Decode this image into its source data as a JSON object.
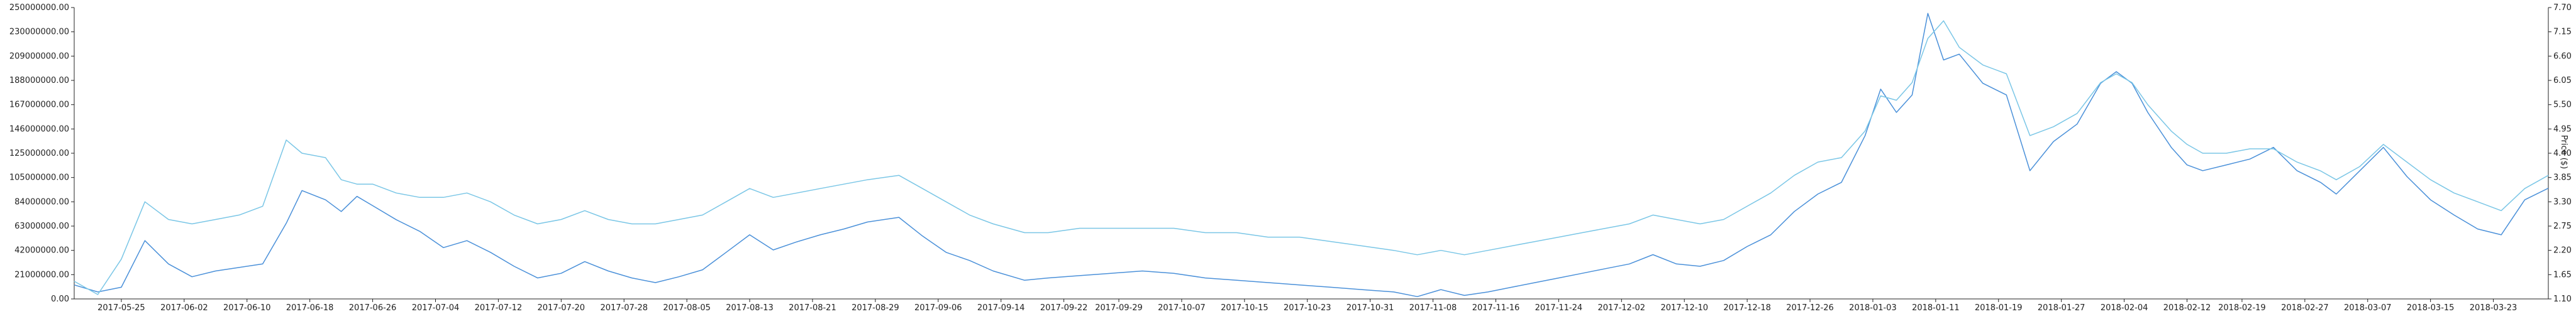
{
  "chart_data": {
    "type": "line",
    "title": "",
    "xlabel": "",
    "ylabel_left": "",
    "ylabel_right": "Price ($)",
    "y_left_ticks": [
      "0.00",
      "21000000.00",
      "42000000.00",
      "63000000.00",
      "84000000.00",
      "105000000.00",
      "125000000.00",
      "146000000.00",
      "167000000.00",
      "188000000.00",
      "209000000.00",
      "230000000.00",
      "250000000.00"
    ],
    "y_left_lim": [
      0,
      250000000
    ],
    "y_right_ticks": [
      "1.10",
      "1.65",
      "2.20",
      "2.75",
      "3.30",
      "3.85",
      "4.40",
      "4.95",
      "5.50",
      "6.05",
      "6.60",
      "7.15",
      "7.70"
    ],
    "y_right_lim": [
      1.1,
      7.7
    ],
    "x_start": "2017-05-19",
    "x_end": "2018-03-30",
    "x_tick_labels": [
      "2017-05-25",
      "2017-06-02",
      "2017-06-10",
      "2017-06-18",
      "2017-06-26",
      "2017-07-04",
      "2017-07-12",
      "2017-07-20",
      "2017-07-28",
      "2017-08-05",
      "2017-08-13",
      "2017-08-21",
      "2017-08-29",
      "2017-09-06",
      "2017-09-14",
      "2017-09-22",
      "2017-09-29",
      "2017-10-07",
      "2017-10-15",
      "2017-10-23",
      "2017-10-31",
      "2017-11-08",
      "2017-11-16",
      "2017-11-24",
      "2017-12-02",
      "2017-12-10",
      "2017-12-18",
      "2017-12-26",
      "2018-01-03",
      "2018-01-11",
      "2018-01-19",
      "2018-01-27",
      "2018-02-04",
      "2018-02-12",
      "2018-02-19",
      "2018-02-27",
      "2018-03-07",
      "2018-03-15",
      "2018-03-23"
    ],
    "series": [
      {
        "axis": "left",
        "color": "#4a90d9",
        "points": [
          [
            "2017-05-19",
            12000000
          ],
          [
            "2017-05-22",
            6000000
          ],
          [
            "2017-05-25",
            10000000
          ],
          [
            "2017-05-28",
            50000000
          ],
          [
            "2017-05-31",
            30000000
          ],
          [
            "2017-06-03",
            19000000
          ],
          [
            "2017-06-06",
            24000000
          ],
          [
            "2017-06-09",
            27000000
          ],
          [
            "2017-06-12",
            30000000
          ],
          [
            "2017-06-15",
            65000000
          ],
          [
            "2017-06-17",
            93000000
          ],
          [
            "2017-06-20",
            85000000
          ],
          [
            "2017-06-22",
            75000000
          ],
          [
            "2017-06-24",
            88000000
          ],
          [
            "2017-06-26",
            80000000
          ],
          [
            "2017-06-29",
            68000000
          ],
          [
            "2017-07-02",
            58000000
          ],
          [
            "2017-07-05",
            44000000
          ],
          [
            "2017-07-08",
            50000000
          ],
          [
            "2017-07-11",
            40000000
          ],
          [
            "2017-07-14",
            28000000
          ],
          [
            "2017-07-17",
            18000000
          ],
          [
            "2017-07-20",
            22000000
          ],
          [
            "2017-07-23",
            32000000
          ],
          [
            "2017-07-26",
            24000000
          ],
          [
            "2017-07-29",
            18000000
          ],
          [
            "2017-08-01",
            14000000
          ],
          [
            "2017-08-04",
            19000000
          ],
          [
            "2017-08-07",
            25000000
          ],
          [
            "2017-08-10",
            40000000
          ],
          [
            "2017-08-13",
            55000000
          ],
          [
            "2017-08-16",
            42000000
          ],
          [
            "2017-08-19",
            49000000
          ],
          [
            "2017-08-22",
            55000000
          ],
          [
            "2017-08-25",
            60000000
          ],
          [
            "2017-08-28",
            66000000
          ],
          [
            "2017-09-01",
            70000000
          ],
          [
            "2017-09-04",
            54000000
          ],
          [
            "2017-09-07",
            40000000
          ],
          [
            "2017-09-10",
            33000000
          ],
          [
            "2017-09-13",
            24000000
          ],
          [
            "2017-09-17",
            16000000
          ],
          [
            "2017-09-20",
            18000000
          ],
          [
            "2017-09-24",
            20000000
          ],
          [
            "2017-09-28",
            22000000
          ],
          [
            "2017-10-02",
            24000000
          ],
          [
            "2017-10-06",
            22000000
          ],
          [
            "2017-10-10",
            18000000
          ],
          [
            "2017-10-14",
            16000000
          ],
          [
            "2017-10-18",
            14000000
          ],
          [
            "2017-10-22",
            12000000
          ],
          [
            "2017-10-26",
            10000000
          ],
          [
            "2017-10-30",
            8000000
          ],
          [
            "2017-11-03",
            6000000
          ],
          [
            "2017-11-06",
            2000000
          ],
          [
            "2017-11-09",
            8000000
          ],
          [
            "2017-11-12",
            3000000
          ],
          [
            "2017-11-15",
            6000000
          ],
          [
            "2017-11-18",
            10000000
          ],
          [
            "2017-11-21",
            14000000
          ],
          [
            "2017-11-24",
            18000000
          ],
          [
            "2017-11-27",
            22000000
          ],
          [
            "2017-11-30",
            26000000
          ],
          [
            "2017-12-03",
            30000000
          ],
          [
            "2017-12-06",
            38000000
          ],
          [
            "2017-12-09",
            30000000
          ],
          [
            "2017-12-12",
            28000000
          ],
          [
            "2017-12-15",
            33000000
          ],
          [
            "2017-12-18",
            45000000
          ],
          [
            "2017-12-21",
            55000000
          ],
          [
            "2017-12-24",
            75000000
          ],
          [
            "2017-12-27",
            90000000
          ],
          [
            "2017-12-30",
            100000000
          ],
          [
            "2018-01-02",
            140000000
          ],
          [
            "2018-01-04",
            180000000
          ],
          [
            "2018-01-06",
            160000000
          ],
          [
            "2018-01-08",
            175000000
          ],
          [
            "2018-01-10",
            245000000
          ],
          [
            "2018-01-12",
            205000000
          ],
          [
            "2018-01-14",
            210000000
          ],
          [
            "2018-01-17",
            185000000
          ],
          [
            "2018-01-20",
            175000000
          ],
          [
            "2018-01-23",
            110000000
          ],
          [
            "2018-01-26",
            135000000
          ],
          [
            "2018-01-29",
            150000000
          ],
          [
            "2018-02-01",
            185000000
          ],
          [
            "2018-02-03",
            195000000
          ],
          [
            "2018-02-05",
            185000000
          ],
          [
            "2018-02-07",
            160000000
          ],
          [
            "2018-02-10",
            130000000
          ],
          [
            "2018-02-12",
            115000000
          ],
          [
            "2018-02-14",
            110000000
          ],
          [
            "2018-02-17",
            115000000
          ],
          [
            "2018-02-20",
            120000000
          ],
          [
            "2018-02-23",
            130000000
          ],
          [
            "2018-02-26",
            110000000
          ],
          [
            "2018-02-29",
            100000000
          ],
          [
            "2018-03-03",
            90000000
          ],
          [
            "2018-03-06",
            110000000
          ],
          [
            "2018-03-09",
            130000000
          ],
          [
            "2018-03-12",
            105000000
          ],
          [
            "2018-03-15",
            85000000
          ],
          [
            "2018-03-18",
            72000000
          ],
          [
            "2018-03-21",
            60000000
          ],
          [
            "2018-03-24",
            55000000
          ],
          [
            "2018-03-27",
            85000000
          ],
          [
            "2018-03-30",
            95000000
          ]
        ]
      },
      {
        "axis": "right",
        "color": "#7ac6e6",
        "points": [
          [
            "2017-05-19",
            1.5
          ],
          [
            "2017-05-22",
            1.2
          ],
          [
            "2017-05-25",
            2.0
          ],
          [
            "2017-05-28",
            3.3
          ],
          [
            "2017-05-31",
            2.9
          ],
          [
            "2017-06-03",
            2.8
          ],
          [
            "2017-06-06",
            2.9
          ],
          [
            "2017-06-09",
            3.0
          ],
          [
            "2017-06-12",
            3.2
          ],
          [
            "2017-06-15",
            4.7
          ],
          [
            "2017-06-17",
            4.4
          ],
          [
            "2017-06-20",
            4.3
          ],
          [
            "2017-06-22",
            3.8
          ],
          [
            "2017-06-24",
            3.7
          ],
          [
            "2017-06-26",
            3.7
          ],
          [
            "2017-06-29",
            3.5
          ],
          [
            "2017-07-02",
            3.4
          ],
          [
            "2017-07-05",
            3.4
          ],
          [
            "2017-07-08",
            3.5
          ],
          [
            "2017-07-11",
            3.3
          ],
          [
            "2017-07-14",
            3.0
          ],
          [
            "2017-07-17",
            2.8
          ],
          [
            "2017-07-20",
            2.9
          ],
          [
            "2017-07-23",
            3.1
          ],
          [
            "2017-07-26",
            2.9
          ],
          [
            "2017-07-29",
            2.8
          ],
          [
            "2017-08-01",
            2.8
          ],
          [
            "2017-08-04",
            2.9
          ],
          [
            "2017-08-07",
            3.0
          ],
          [
            "2017-08-10",
            3.3
          ],
          [
            "2017-08-13",
            3.6
          ],
          [
            "2017-08-16",
            3.4
          ],
          [
            "2017-08-19",
            3.5
          ],
          [
            "2017-08-22",
            3.6
          ],
          [
            "2017-08-25",
            3.7
          ],
          [
            "2017-08-28",
            3.8
          ],
          [
            "2017-09-01",
            3.9
          ],
          [
            "2017-09-04",
            3.6
          ],
          [
            "2017-09-07",
            3.3
          ],
          [
            "2017-09-10",
            3.0
          ],
          [
            "2017-09-13",
            2.8
          ],
          [
            "2017-09-17",
            2.6
          ],
          [
            "2017-09-20",
            2.6
          ],
          [
            "2017-09-24",
            2.7
          ],
          [
            "2017-09-28",
            2.7
          ],
          [
            "2017-10-02",
            2.7
          ],
          [
            "2017-10-06",
            2.7
          ],
          [
            "2017-10-10",
            2.6
          ],
          [
            "2017-10-14",
            2.6
          ],
          [
            "2017-10-18",
            2.5
          ],
          [
            "2017-10-22",
            2.5
          ],
          [
            "2017-10-26",
            2.4
          ],
          [
            "2017-10-30",
            2.3
          ],
          [
            "2017-11-03",
            2.2
          ],
          [
            "2017-11-06",
            2.1
          ],
          [
            "2017-11-09",
            2.2
          ],
          [
            "2017-11-12",
            2.1
          ],
          [
            "2017-11-15",
            2.2
          ],
          [
            "2017-11-18",
            2.3
          ],
          [
            "2017-11-21",
            2.4
          ],
          [
            "2017-11-24",
            2.5
          ],
          [
            "2017-11-27",
            2.6
          ],
          [
            "2017-11-30",
            2.7
          ],
          [
            "2017-12-03",
            2.8
          ],
          [
            "2017-12-06",
            3.0
          ],
          [
            "2017-12-09",
            2.9
          ],
          [
            "2017-12-12",
            2.8
          ],
          [
            "2017-12-15",
            2.9
          ],
          [
            "2017-12-18",
            3.2
          ],
          [
            "2017-12-21",
            3.5
          ],
          [
            "2017-12-24",
            3.9
          ],
          [
            "2017-12-27",
            4.2
          ],
          [
            "2017-12-30",
            4.3
          ],
          [
            "2018-01-02",
            4.9
          ],
          [
            "2018-01-04",
            5.7
          ],
          [
            "2018-01-06",
            5.6
          ],
          [
            "2018-01-08",
            6.0
          ],
          [
            "2018-01-10",
            7.0
          ],
          [
            "2018-01-12",
            7.4
          ],
          [
            "2018-01-14",
            6.8
          ],
          [
            "2018-01-17",
            6.4
          ],
          [
            "2018-01-20",
            6.2
          ],
          [
            "2018-01-23",
            4.8
          ],
          [
            "2018-01-26",
            5.0
          ],
          [
            "2018-01-29",
            5.3
          ],
          [
            "2018-02-01",
            6.0
          ],
          [
            "2018-02-03",
            6.2
          ],
          [
            "2018-02-05",
            6.0
          ],
          [
            "2018-02-07",
            5.5
          ],
          [
            "2018-02-10",
            4.9
          ],
          [
            "2018-02-12",
            4.6
          ],
          [
            "2018-02-14",
            4.4
          ],
          [
            "2018-02-17",
            4.4
          ],
          [
            "2018-02-20",
            4.5
          ],
          [
            "2018-02-23",
            4.5
          ],
          [
            "2018-02-26",
            4.2
          ],
          [
            "2018-02-29",
            4.0
          ],
          [
            "2018-03-03",
            3.8
          ],
          [
            "2018-03-06",
            4.1
          ],
          [
            "2018-03-09",
            4.6
          ],
          [
            "2018-03-12",
            4.2
          ],
          [
            "2018-03-15",
            3.8
          ],
          [
            "2018-03-18",
            3.5
          ],
          [
            "2018-03-21",
            3.3
          ],
          [
            "2018-03-24",
            3.1
          ],
          [
            "2018-03-27",
            3.6
          ],
          [
            "2018-03-30",
            3.9
          ]
        ]
      }
    ]
  }
}
